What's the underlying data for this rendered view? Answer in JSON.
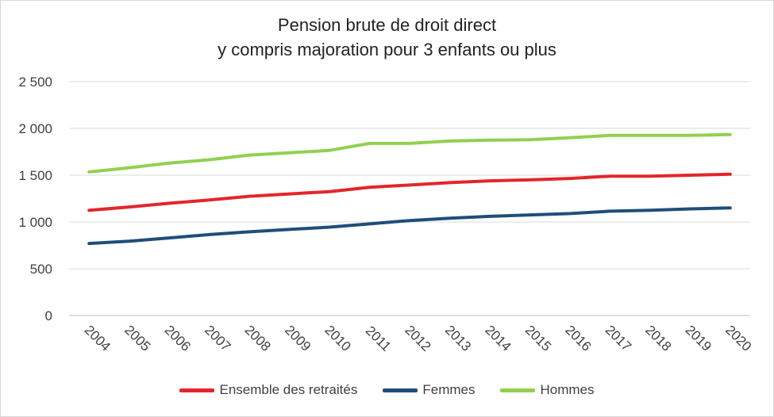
{
  "chart_data": {
    "type": "line",
    "title_lines": [
      "Pension brute de droit direct",
      "y compris majoration pour 3 enfants ou plus"
    ],
    "categories": [
      "2004",
      "2005",
      "2006",
      "2007",
      "2008",
      "2009",
      "2010",
      "2011",
      "2012",
      "2013",
      "2014",
      "2015",
      "2016",
      "2017",
      "2018",
      "2019",
      "2020"
    ],
    "ylim": [
      0,
      2500
    ],
    "yticks": [
      0,
      500,
      1000,
      1500,
      2000,
      2500
    ],
    "ytick_labels": [
      "0",
      "500",
      "1 000",
      "1 500",
      "2 000",
      "2 500"
    ],
    "grid": true,
    "legend_position": "bottom",
    "series": [
      {
        "name": "Ensemble des retraités",
        "color": "#e3262b",
        "values": [
          1125,
          1160,
          1200,
          1235,
          1275,
          1300,
          1325,
          1370,
          1395,
          1420,
          1440,
          1450,
          1465,
          1490,
          1490,
          1500,
          1510
        ]
      },
      {
        "name": "Femmes",
        "color": "#1f4e79",
        "values": [
          770,
          795,
          830,
          865,
          895,
          920,
          945,
          980,
          1015,
          1040,
          1060,
          1075,
          1090,
          1115,
          1125,
          1140,
          1150
        ]
      },
      {
        "name": "Hommes",
        "color": "#92d050",
        "values": [
          1535,
          1580,
          1630,
          1665,
          1715,
          1740,
          1765,
          1840,
          1840,
          1865,
          1875,
          1880,
          1900,
          1925,
          1925,
          1925,
          1935
        ]
      }
    ]
  }
}
